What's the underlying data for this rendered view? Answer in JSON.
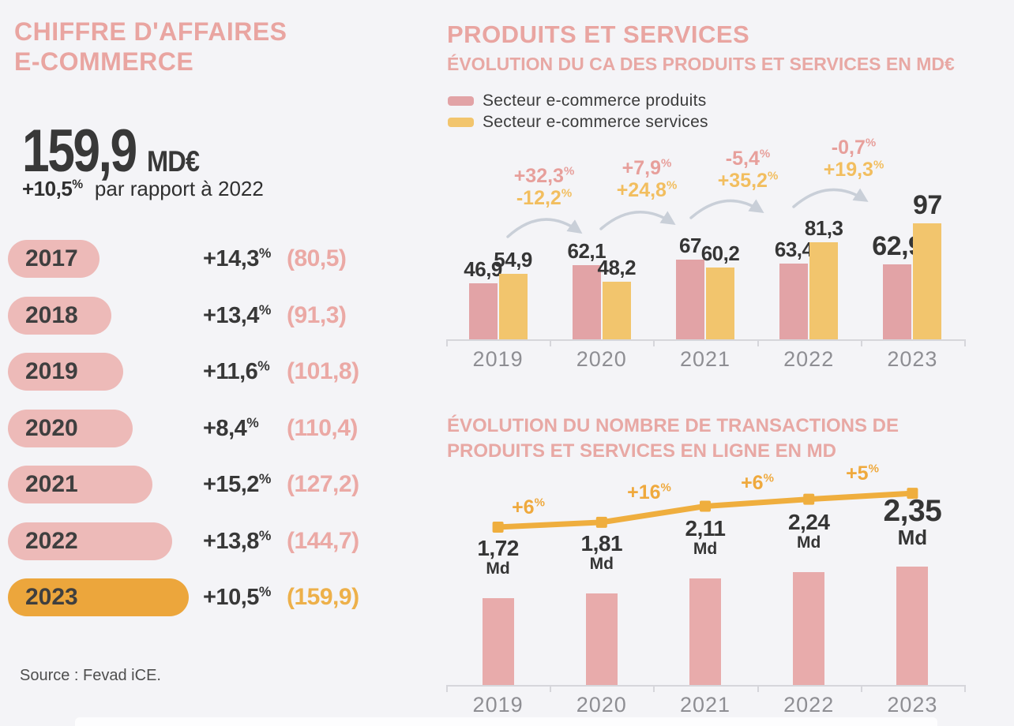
{
  "colors": {
    "bg": "#f4f4f7",
    "dark": "#3b3b3b",
    "pink_title": "#e9a5a1",
    "pink_sub": "#e8a8a4",
    "pink_pill": "#edbab8",
    "pink_bar": "#e2a3a6",
    "pink_bar2": "#e8abab",
    "pink_value": "#eba9a5",
    "pink_ann": "#e79f9b",
    "yellow_bar": "#f2c56d",
    "yellow_strong": "#eca63c",
    "yellow_ann": "#f2be5f",
    "yellow_line": "#efae3e",
    "yellow_line_ann": "#efa93d",
    "orange_value": "#edb04a",
    "gray_axis": "#8e8e93",
    "arrow_gray": "#c9cfd8",
    "axis_line": "#d6d6db",
    "source_text": "#4e4e4e"
  },
  "left": {
    "title_line1": "CHIFFRE D'AFFAIRES",
    "title_line2": "E-COMMERCE",
    "headline_value": "159,9",
    "headline_unit": "MD€",
    "headline_growth": "+10,5%",
    "headline_growth_suffix": "par rapport à 2022",
    "source": "Source : Fevad iCE.",
    "years": [
      {
        "year": "2017",
        "growth": "+14,3%",
        "value": "(80,5)"
      },
      {
        "year": "2018",
        "growth": "+13,4%",
        "value": "(91,3)"
      },
      {
        "year": "2019",
        "growth": "+11,6%",
        "value": "(101,8)"
      },
      {
        "year": "2020",
        "growth": "+8,4%",
        "value": "(110,4)"
      },
      {
        "year": "2021",
        "growth": "+15,2%",
        "value": "(127,2)"
      },
      {
        "year": "2022",
        "growth": "+13,8%",
        "value": "(144,7)"
      },
      {
        "year": "2023",
        "growth": "+10,5%",
        "value": "(159,9)"
      }
    ]
  },
  "right": {
    "title": "PRODUITS ET SERVICES"
  },
  "chart_data": [
    {
      "type": "bar",
      "orientation": "horizontal",
      "title": "CHIFFRE D'AFFAIRES E-COMMERCE (MD€)",
      "categories": [
        "2017",
        "2018",
        "2019",
        "2020",
        "2021",
        "2022",
        "2023"
      ],
      "values": [
        80.5,
        91.3,
        101.8,
        110.4,
        127.2,
        144.7,
        159.9
      ],
      "growth_pct": [
        14.3,
        13.4,
        11.6,
        8.4,
        15.2,
        13.8,
        10.5
      ],
      "highlight_category": "2023",
      "source": "Fevad iCE"
    },
    {
      "type": "bar",
      "title": "ÉVOLUTION DU CA DES PRODUITS ET SERVICES EN MD€",
      "categories": [
        "2019",
        "2020",
        "2021",
        "2022",
        "2023"
      ],
      "series": [
        {
          "name": "Secteur e-commerce produits",
          "color": "#e2a3a6",
          "values": [
            46.9,
            62.1,
            67,
            63.4,
            62.9
          ],
          "labels": [
            "46,9",
            "62,1",
            "67",
            "63,4",
            "62,9"
          ],
          "growth_labels": [
            "+32,3%",
            "+7,9%",
            "-5,4%",
            "-0,7%"
          ]
        },
        {
          "name": "Secteur e-commerce services",
          "color": "#f2c56d",
          "values": [
            54.9,
            48.2,
            60.2,
            81.3,
            97
          ],
          "labels": [
            "54,9",
            "48,2",
            "60,2",
            "81,3",
            "97"
          ],
          "growth_labels": [
            "-12,2%",
            "+24,8%",
            "+35,2%",
            "+19,3%"
          ]
        }
      ],
      "ylim": [
        0,
        100
      ],
      "legend_position": "top",
      "grid": false
    },
    {
      "type": "bar+line",
      "title": "ÉVOLUTION DU NOMBRE DE TRANSACTIONS DE PRODUITS ET SERVICES EN LIGNE EN MD",
      "categories": [
        "2019",
        "2020",
        "2021",
        "2022",
        "2023"
      ],
      "bars": {
        "color": "#e8abab",
        "values": [
          1.72,
          1.81,
          2.11,
          2.24,
          2.35
        ],
        "labels": [
          "1,72",
          "1,81",
          "2,11",
          "2,24",
          "2,35"
        ],
        "unit": "Md"
      },
      "line": {
        "color": "#efae3e",
        "growth_labels": [
          "+6%",
          "+16%",
          "+6%",
          "+5%"
        ]
      },
      "ylim": [
        0,
        2.5
      ],
      "grid": false
    }
  ]
}
